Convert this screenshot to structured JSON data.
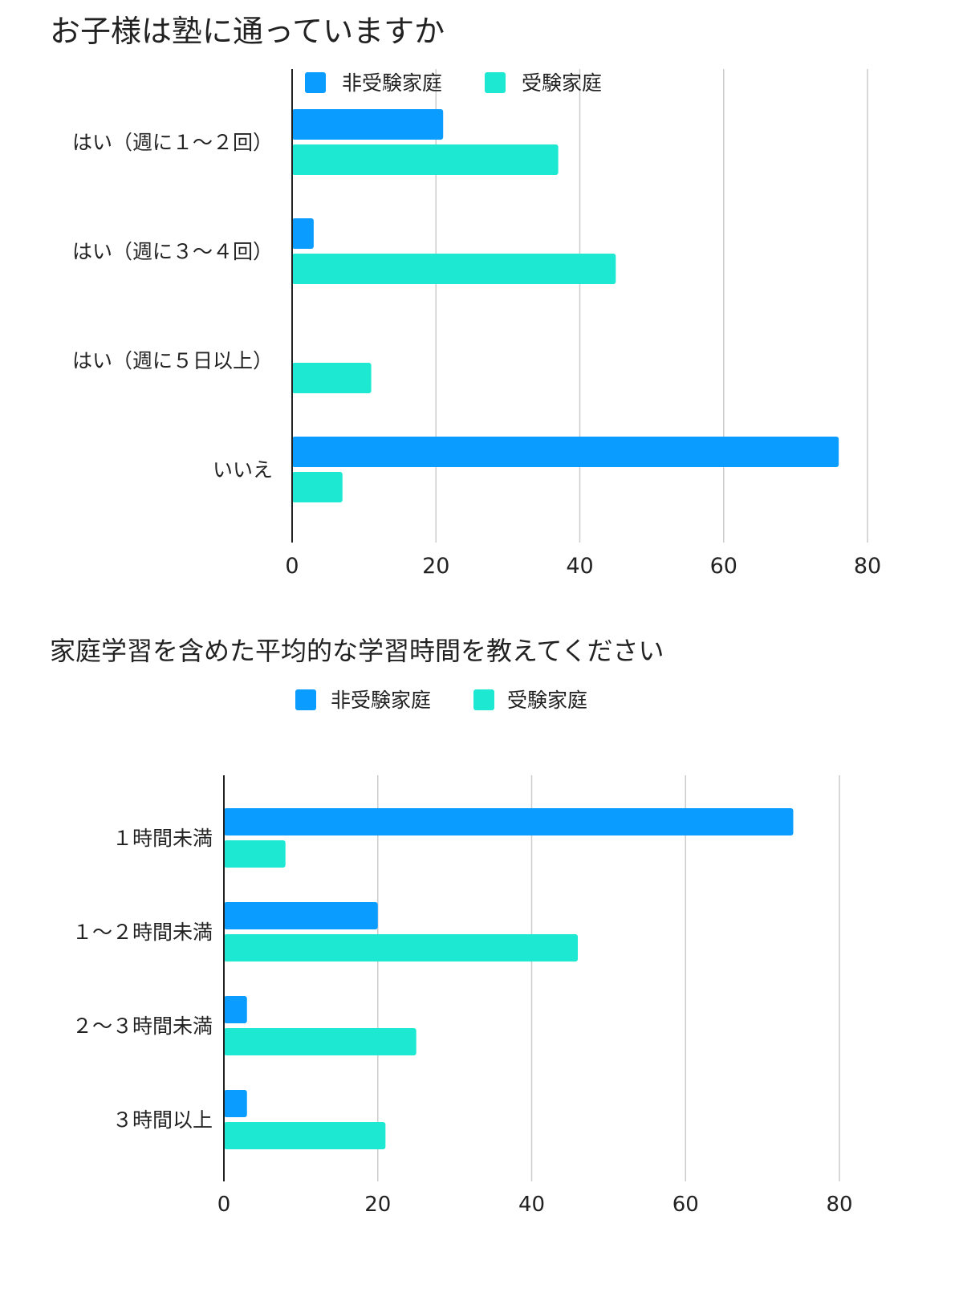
{
  "colors": {
    "non_exam": "#0a9cff",
    "exam": "#1de8d2",
    "grid": "#cccccc",
    "axis": "#222222"
  },
  "chart_data": [
    {
      "type": "bar",
      "orientation": "horizontal",
      "title": "お子様は塾に通っていますか",
      "categories": [
        "はい（週に１～２回）",
        "はい（週に３～４回）",
        "はい（週に５日以上）",
        "いいえ"
      ],
      "series": [
        {
          "name": "非受験家庭",
          "values": [
            21,
            3,
            0,
            76
          ]
        },
        {
          "name": "受験家庭",
          "values": [
            37,
            45,
            11,
            7
          ]
        }
      ],
      "xlim": [
        0,
        80
      ],
      "xticks": [
        "0",
        "20",
        "40",
        "60",
        "80"
      ],
      "grid": true,
      "legend": "top"
    },
    {
      "type": "bar",
      "orientation": "horizontal",
      "title": "家庭学習を含めた平均的な学習時間を教えてください",
      "categories": [
        "１時間未満",
        "１～２時間未満",
        "２～３時間未満",
        "３時間以上"
      ],
      "series": [
        {
          "name": "非受験家庭",
          "values": [
            74,
            20,
            3,
            3
          ]
        },
        {
          "name": "受験家庭",
          "values": [
            8,
            46,
            25,
            21
          ]
        }
      ],
      "xlim": [
        0,
        80
      ],
      "xticks": [
        "0",
        "20",
        "40",
        "60",
        "80"
      ],
      "grid": true,
      "legend": "top"
    }
  ]
}
